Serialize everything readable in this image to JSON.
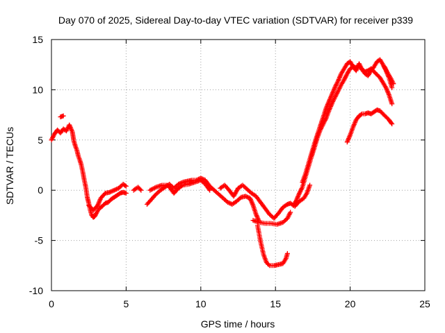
{
  "chart_data": {
    "type": "scatter",
    "title": "Day 070 of 2025, Sidereal Day-to-day VTEC variation (SDTVAR) for receiver p339",
    "xlabel": "GPS time / hours",
    "ylabel": "SDTVAR / TECUs",
    "xlim": [
      0,
      25
    ],
    "ylim": [
      -10,
      15
    ],
    "xticks": [
      0,
      5,
      10,
      15,
      20,
      25
    ],
    "yticks": [
      -10,
      -5,
      0,
      5,
      10,
      15
    ],
    "grid": true,
    "marker": "+",
    "series": [
      {
        "name": "SDTVAR",
        "color": "#ff0000",
        "segments": [
          [
            [
              0.0,
              5.0
            ],
            [
              0.2,
              5.6
            ],
            [
              0.4,
              6.0
            ],
            [
              0.6,
              5.7
            ],
            [
              0.8,
              6.1
            ],
            [
              1.0,
              5.9
            ],
            [
              1.2,
              6.5
            ],
            [
              1.4,
              5.8
            ],
            [
              1.5,
              4.9
            ],
            [
              1.6,
              4.4
            ],
            [
              1.7,
              4.0
            ],
            [
              1.8,
              3.4
            ],
            [
              1.9,
              3.0
            ],
            [
              2.0,
              2.5
            ],
            [
              2.1,
              1.8
            ],
            [
              2.2,
              1.0
            ],
            [
              2.3,
              0.3
            ],
            [
              2.4,
              -0.7
            ],
            [
              2.5,
              -1.3
            ],
            [
              2.6,
              -2.0
            ],
            [
              2.7,
              -2.5
            ],
            [
              2.8,
              -2.7
            ],
            [
              2.9,
              -2.6
            ],
            [
              3.0,
              -2.3
            ],
            [
              3.2,
              -1.8
            ],
            [
              3.4,
              -1.6
            ],
            [
              3.6,
              -1.3
            ],
            [
              3.8,
              -1.2
            ],
            [
              4.0,
              -0.9
            ],
            [
              4.2,
              -0.7
            ],
            [
              4.4,
              -0.5
            ],
            [
              4.6,
              -0.3
            ],
            [
              4.8,
              -0.2
            ],
            [
              5.0,
              -0.3
            ]
          ],
          [
            [
              2.5,
              -1.5
            ],
            [
              2.8,
              -2.0
            ],
            [
              3.1,
              -1.5
            ],
            [
              3.3,
              -0.8
            ],
            [
              3.6,
              -0.3
            ],
            [
              3.9,
              -0.2
            ],
            [
              4.2,
              0.0
            ],
            [
              4.5,
              0.2
            ],
            [
              4.8,
              0.6
            ],
            [
              5.0,
              0.4
            ]
          ],
          [
            [
              0.6,
              7.3
            ],
            [
              0.8,
              7.4
            ]
          ],
          [
            [
              5.5,
              0.0
            ],
            [
              5.8,
              0.3
            ],
            [
              6.0,
              0.0
            ]
          ],
          [
            [
              6.4,
              -1.4
            ],
            [
              6.7,
              -0.9
            ],
            [
              7.0,
              -0.4
            ],
            [
              7.3,
              0.0
            ],
            [
              7.6,
              0.3
            ],
            [
              7.9,
              0.6
            ],
            [
              8.2,
              0.2
            ],
            [
              8.5,
              0.6
            ],
            [
              8.8,
              0.8
            ],
            [
              9.1,
              0.9
            ],
            [
              9.4,
              1.0
            ],
            [
              9.7,
              1.0
            ],
            [
              10.0,
              1.2
            ],
            [
              10.3,
              1.0
            ],
            [
              10.6,
              0.4
            ],
            [
              10.9,
              0.0
            ],
            [
              11.2,
              -0.4
            ],
            [
              11.5,
              -0.8
            ],
            [
              11.8,
              -1.2
            ],
            [
              12.1,
              -1.4
            ],
            [
              12.4,
              -1.1
            ],
            [
              12.7,
              -0.7
            ],
            [
              13.0,
              -0.6
            ],
            [
              13.3,
              -0.8
            ],
            [
              13.5,
              -1.5
            ],
            [
              13.7,
              -2.4
            ],
            [
              13.9,
              -3.1
            ]
          ],
          [
            [
              6.6,
              0.0
            ],
            [
              7.0,
              0.3
            ],
            [
              7.4,
              0.5
            ],
            [
              7.8,
              0.5
            ],
            [
              8.2,
              -0.3
            ],
            [
              8.5,
              0.2
            ],
            [
              8.8,
              0.5
            ],
            [
              9.2,
              0.6
            ],
            [
              9.6,
              0.8
            ],
            [
              10.0,
              1.0
            ],
            [
              10.3,
              0.6
            ],
            [
              10.6,
              0.0
            ]
          ],
          [
            [
              11.3,
              0.2
            ],
            [
              11.6,
              0.5
            ],
            [
              11.9,
              0.0
            ],
            [
              12.2,
              -0.6
            ],
            [
              12.5,
              0.2
            ],
            [
              12.8,
              0.5
            ],
            [
              13.1,
              0.1
            ],
            [
              13.4,
              -0.3
            ],
            [
              13.7,
              -0.6
            ],
            [
              14.0,
              -1.2
            ],
            [
              14.3,
              -1.8
            ],
            [
              14.6,
              -2.4
            ],
            [
              14.9,
              -2.8
            ],
            [
              15.2,
              -2.3
            ],
            [
              15.5,
              -1.7
            ],
            [
              15.8,
              -1.4
            ],
            [
              16.0,
              -1.3
            ],
            [
              16.3,
              -1.6
            ],
            [
              16.6,
              -1.1
            ],
            [
              16.9,
              -0.8
            ],
            [
              17.1,
              -0.3
            ],
            [
              17.3,
              0.5
            ]
          ],
          [
            [
              13.5,
              -3.0
            ],
            [
              13.9,
              -3.2
            ],
            [
              14.3,
              -3.3
            ],
            [
              14.7,
              -3.3
            ],
            [
              15.1,
              -3.4
            ],
            [
              15.5,
              -3.2
            ],
            [
              15.8,
              -2.8
            ],
            [
              16.0,
              -2.2
            ]
          ],
          [
            [
              13.8,
              -3.5
            ],
            [
              14.0,
              -5.1
            ],
            [
              14.2,
              -6.4
            ],
            [
              14.4,
              -7.2
            ],
            [
              14.6,
              -7.5
            ],
            [
              14.9,
              -7.5
            ],
            [
              15.2,
              -7.4
            ],
            [
              15.5,
              -7.3
            ],
            [
              15.7,
              -6.8
            ],
            [
              15.8,
              -6.3
            ]
          ],
          [
            [
              16.2,
              -1.5
            ],
            [
              16.4,
              -1.0
            ],
            [
              16.6,
              -0.3
            ],
            [
              16.8,
              0.3
            ],
            [
              17.0,
              1.3
            ],
            [
              17.2,
              2.3
            ],
            [
              17.4,
              3.3
            ],
            [
              17.6,
              4.2
            ],
            [
              17.8,
              5.2
            ],
            [
              18.0,
              6.0
            ],
            [
              18.2,
              6.6
            ],
            [
              18.4,
              7.2
            ],
            [
              18.6,
              8.0
            ],
            [
              18.8,
              8.7
            ],
            [
              19.0,
              9.3
            ],
            [
              19.2,
              9.9
            ],
            [
              19.4,
              10.5
            ],
            [
              19.6,
              11.0
            ],
            [
              19.8,
              11.6
            ],
            [
              20.0,
              12.1
            ],
            [
              20.2,
              12.3
            ],
            [
              20.4,
              12.2
            ],
            [
              20.6,
              12.4
            ],
            [
              20.8,
              12.0
            ],
            [
              21.0,
              11.8
            ],
            [
              21.2,
              11.9
            ],
            [
              21.4,
              12.1
            ],
            [
              21.6,
              11.8
            ],
            [
              21.8,
              11.5
            ],
            [
              22.0,
              11.2
            ],
            [
              22.2,
              10.7
            ],
            [
              22.4,
              10.2
            ],
            [
              22.6,
              9.5
            ],
            [
              22.8,
              8.6
            ]
          ],
          [
            [
              16.8,
              0.8
            ],
            [
              17.0,
              1.6
            ],
            [
              17.2,
              2.6
            ],
            [
              17.4,
              3.6
            ],
            [
              17.6,
              4.6
            ],
            [
              17.8,
              5.5
            ],
            [
              18.0,
              6.4
            ],
            [
              18.2,
              7.3
            ],
            [
              18.4,
              8.2
            ],
            [
              18.6,
              8.9
            ],
            [
              18.8,
              9.6
            ],
            [
              19.0,
              10.3
            ],
            [
              19.2,
              10.9
            ],
            [
              19.4,
              11.6
            ],
            [
              19.6,
              12.1
            ],
            [
              19.8,
              12.6
            ],
            [
              20.0,
              12.8
            ],
            [
              20.2,
              12.3
            ],
            [
              20.4,
              11.9
            ],
            [
              20.6,
              12.6
            ],
            [
              20.8,
              12.0
            ],
            [
              21.0,
              11.6
            ],
            [
              21.2,
              11.4
            ],
            [
              21.4,
              11.9
            ],
            [
              21.6,
              12.3
            ],
            [
              21.8,
              12.8
            ],
            [
              22.0,
              13.0
            ],
            [
              22.2,
              12.5
            ],
            [
              22.4,
              11.9
            ],
            [
              22.6,
              11.2
            ],
            [
              22.8,
              10.2
            ]
          ],
          [
            [
              22.3,
              12.3
            ],
            [
              22.5,
              11.7
            ],
            [
              22.7,
              11.2
            ],
            [
              22.9,
              10.6
            ]
          ],
          [
            [
              19.8,
              4.8
            ],
            [
              20.0,
              5.5
            ],
            [
              20.2,
              6.3
            ],
            [
              20.4,
              7.0
            ],
            [
              20.6,
              7.4
            ],
            [
              20.8,
              7.6
            ],
            [
              21.0,
              7.6
            ],
            [
              21.2,
              7.7
            ],
            [
              21.4,
              7.6
            ],
            [
              21.6,
              7.8
            ],
            [
              21.8,
              8.0
            ],
            [
              22.0,
              7.9
            ],
            [
              22.2,
              7.6
            ],
            [
              22.4,
              7.3
            ],
            [
              22.6,
              7.0
            ],
            [
              22.8,
              6.6
            ]
          ]
        ]
      }
    ]
  }
}
